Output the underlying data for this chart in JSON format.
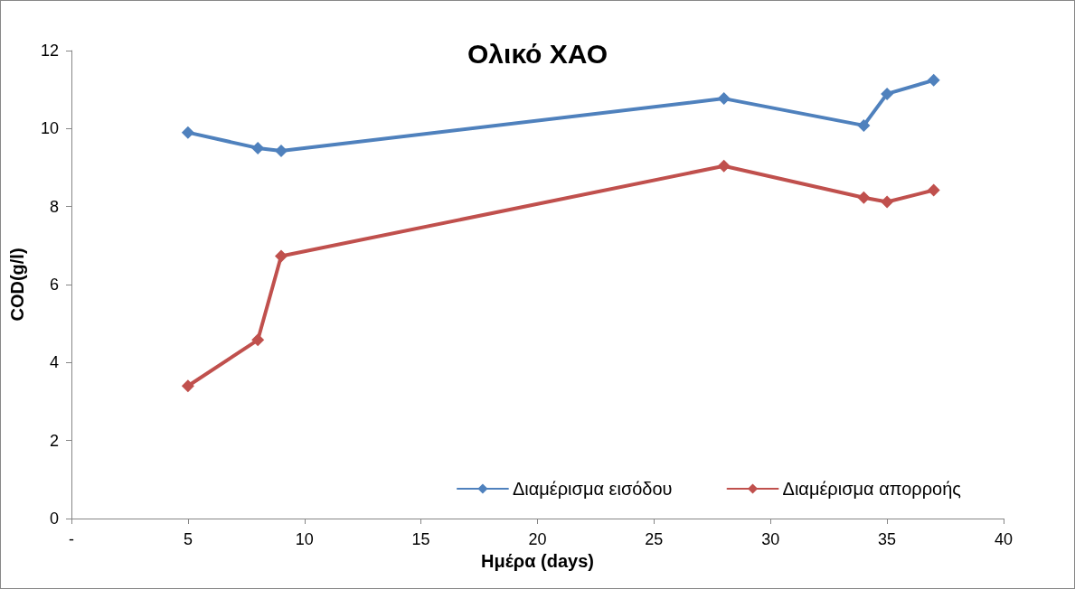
{
  "chart_data": {
    "type": "line",
    "title": "Ολικό ΧΑΟ",
    "xlabel": "Ημέρα (days)",
    "ylabel": "COD(g/l)",
    "x": [
      5,
      8,
      9,
      28,
      34,
      35,
      37
    ],
    "series": [
      {
        "name": "Διαμέρισμα εισόδου",
        "color": "#4f81bd",
        "values": [
          9.9,
          9.5,
          9.43,
          10.77,
          10.08,
          10.89,
          11.24
        ]
      },
      {
        "name": "Διαμέρισμα απορροής",
        "color": "#c0504d",
        "values": [
          3.4,
          4.58,
          6.73,
          9.04,
          8.23,
          8.12,
          8.42
        ]
      }
    ],
    "xlim": [
      0,
      40
    ],
    "xticks": [
      {
        "value": 0,
        "label": "-"
      },
      5,
      10,
      15,
      20,
      25,
      30,
      35,
      40
    ],
    "ylim": [
      0,
      12
    ],
    "yticks": [
      0,
      2,
      4,
      6,
      8,
      10,
      12
    ],
    "grid": false,
    "legend": "bottom right",
    "marker": "diamond",
    "line_style": "solid"
  }
}
